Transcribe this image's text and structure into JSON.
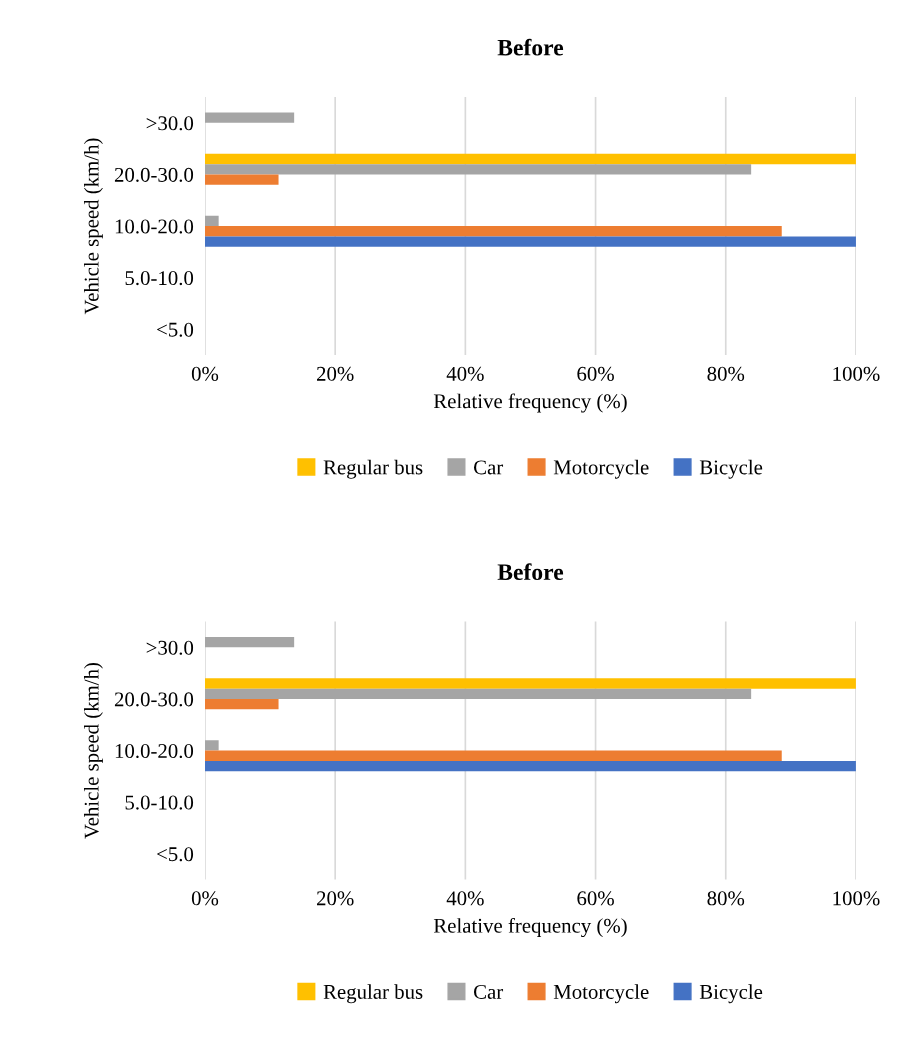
{
  "chart_data": [
    {
      "type": "bar",
      "orientation": "horizontal",
      "title": "Before",
      "xlabel": "Relative frequency (%)",
      "ylabel": "Vehicle speed (km/h)",
      "categories": [
        ">30.0",
        "20.0-30.0",
        "10.0-20.0",
        "5.0-10.0",
        "<5.0"
      ],
      "series": [
        {
          "name": "Regular bus",
          "color": "#ffc000",
          "values": [
            0,
            100,
            0,
            0,
            0
          ]
        },
        {
          "name": "Car",
          "color": "#a5a5a5",
          "values": [
            13.7,
            83.9,
            2.1,
            0,
            0
          ]
        },
        {
          "name": "Motorcycle",
          "color": "#ed7d31",
          "values": [
            0,
            11.3,
            88.6,
            0,
            0
          ]
        },
        {
          "name": "Bicycle",
          "color": "#4472c4",
          "values": [
            0,
            0,
            100,
            0,
            0
          ]
        }
      ],
      "xlim": [
        0,
        100
      ],
      "xticks": [
        {
          "value": 0,
          "label": "0%"
        },
        {
          "value": 20,
          "label": "20%"
        },
        {
          "value": 40,
          "label": "40%"
        },
        {
          "value": 60,
          "label": "60%"
        },
        {
          "value": 80,
          "label": "80%"
        },
        {
          "value": 100,
          "label": "100%"
        }
      ],
      "grid": "x",
      "legend": "bottom"
    },
    {
      "type": "bar",
      "orientation": "horizontal",
      "title": "Before",
      "xlabel": "Relative frequency (%)",
      "ylabel": "Vehicle speed (km/h)",
      "categories": [
        ">30.0",
        "20.0-30.0",
        "10.0-20.0",
        "5.0-10.0",
        "<5.0"
      ],
      "series": [
        {
          "name": "Regular bus",
          "color": "#ffc000",
          "values": [
            0,
            100,
            0,
            0,
            0
          ]
        },
        {
          "name": "Car",
          "color": "#a5a5a5",
          "values": [
            13.7,
            83.9,
            2.1,
            0,
            0
          ]
        },
        {
          "name": "Motorcycle",
          "color": "#ed7d31",
          "values": [
            0,
            11.3,
            88.6,
            0,
            0
          ]
        },
        {
          "name": "Bicycle",
          "color": "#4472c4",
          "values": [
            0,
            0,
            100,
            0,
            0
          ]
        }
      ],
      "xlim": [
        0,
        100
      ],
      "xticks": [
        {
          "value": 0,
          "label": "0%"
        },
        {
          "value": 20,
          "label": "20%"
        },
        {
          "value": 40,
          "label": "40%"
        },
        {
          "value": 60,
          "label": "60%"
        },
        {
          "value": 80,
          "label": "80%"
        },
        {
          "value": 100,
          "label": "100%"
        }
      ],
      "grid": "x",
      "legend": "bottom"
    }
  ]
}
